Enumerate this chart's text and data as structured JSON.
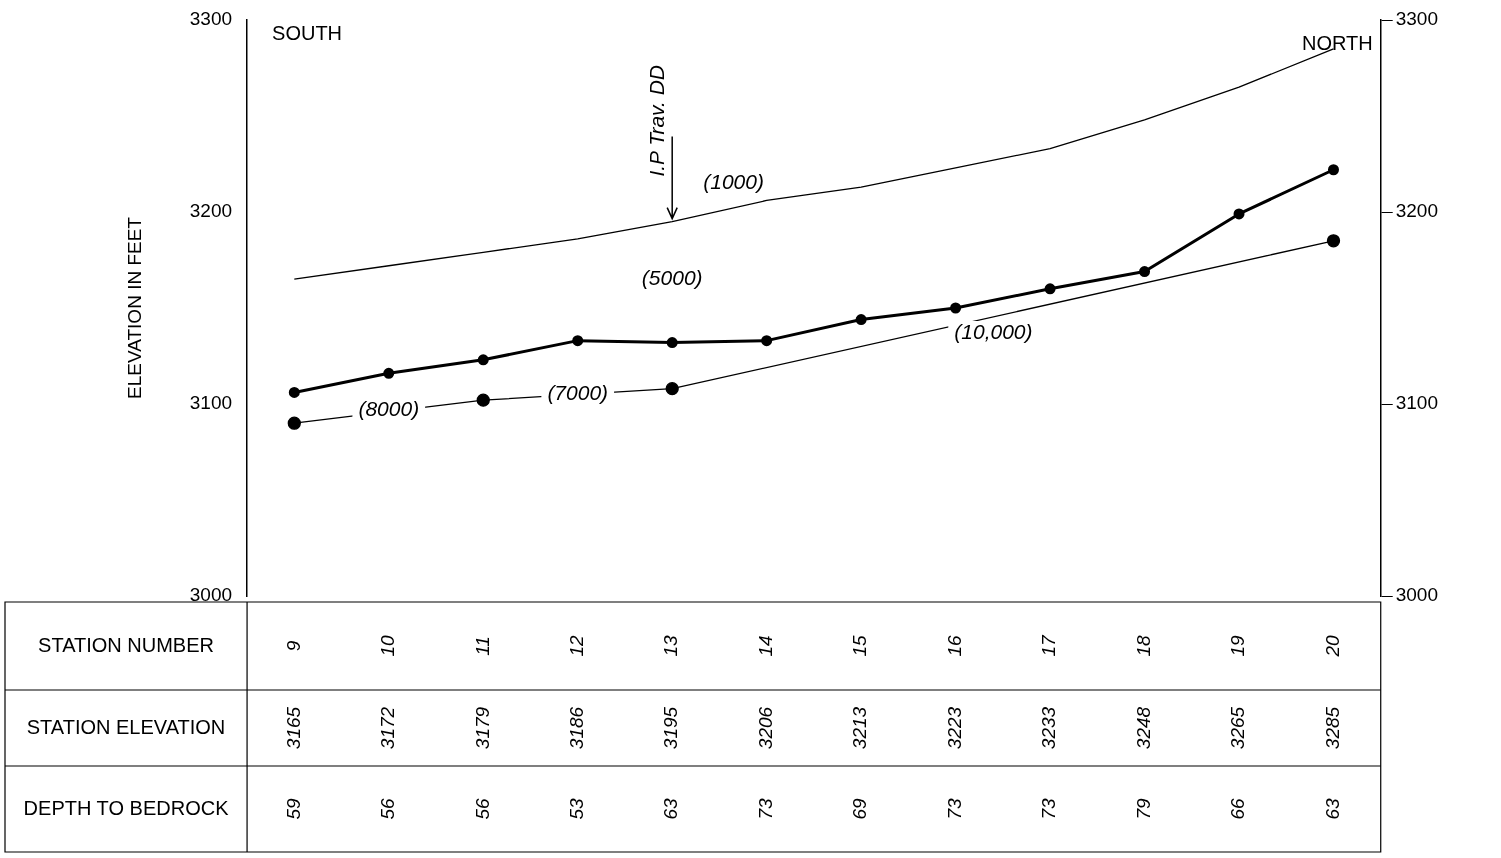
{
  "chart_data": {
    "type": "line",
    "ylabel": "ELEVATION IN FEET",
    "categories": [
      "9",
      "10",
      "11",
      "12",
      "13",
      "14",
      "15",
      "16",
      "17",
      "18",
      "19",
      "20"
    ],
    "series": [
      {
        "color": "#000000",
        "marker": "none",
        "values": [
          3165,
          3172,
          3179,
          3186,
          3195,
          3206,
          3213,
          3223,
          3233,
          3248,
          3265,
          3285
        ],
        "value_labels": [
          "3165",
          "3172",
          "3179",
          "3186",
          "3195",
          "3206",
          "3213",
          "3223",
          "3233",
          "3248",
          "3265",
          "3285"
        ]
      },
      {
        "color": "#000000",
        "marker": "circle",
        "values": [
          3106,
          3116,
          3123,
          3133,
          3132,
          3133,
          3144,
          3150,
          3160,
          3169,
          3199,
          3222
        ]
      },
      {
        "color": "#000000",
        "marker": "circle",
        "values": [
          3090,
          null,
          3102,
          null,
          3108,
          null,
          null,
          null,
          null,
          null,
          null,
          3185
        ]
      }
    ],
    "ylim": [
      3000,
      3300
    ],
    "yticks": [
      3000,
      3100,
      3200,
      3300
    ],
    "y2lim": [
      3000,
      3300
    ],
    "y2ticks": [
      3000,
      3100,
      3200,
      3300
    ],
    "grid": false,
    "legend": false,
    "annotations": [
      "SOUTH",
      "NORTH",
      "STATION NUMBER",
      "STATION ELEVATION",
      "DEPTH TO BEDROCK",
      "59",
      "56",
      "56",
      "53",
      "63",
      "73",
      "69",
      "73",
      "73",
      "79",
      "66",
      "63",
      "(1000)",
      "(5000)",
      "(10,000)",
      {
        "text": "I.P Trav. DD",
        "x": "13",
        "y": 3195
      },
      {
        "text": "(8000)",
        "x": "10",
        "y": 3097
      },
      {
        "text": "(7000)",
        "x": "12",
        "y": 3105
      }
    ]
  }
}
